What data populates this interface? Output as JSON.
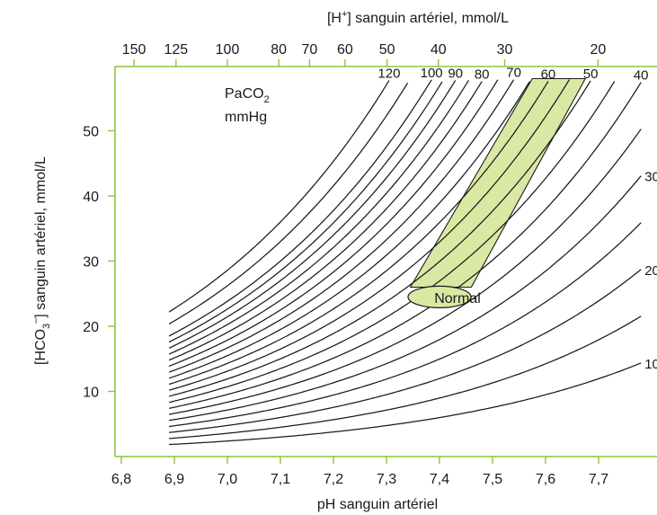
{
  "chart_data": {
    "type": "line",
    "xlabel": "pH sanguin artériel",
    "ylabel_parts": [
      "[HCO",
      "3",
      "–",
      "] sanguin artériel, mmol/L"
    ],
    "top_xlabel_parts": [
      "[H",
      "+",
      "] sanguin artériel, mmol/L"
    ],
    "xlim": [
      6.8,
      7.8
    ],
    "ylim": [
      0,
      58
    ],
    "x_ticks": [
      "6,8",
      "6,9",
      "7,0",
      "7,1",
      "7,2",
      "7,3",
      "7,4",
      "7,5",
      "7,6",
      "7,7"
    ],
    "x_tick_values": [
      6.8,
      6.9,
      7.0,
      7.1,
      7.2,
      7.3,
      7.4,
      7.5,
      7.6,
      7.7
    ],
    "y_ticks": [
      "10",
      "20",
      "30",
      "40",
      "50"
    ],
    "y_tick_values": [
      10,
      20,
      30,
      40,
      50
    ],
    "top_ticks": [
      "150",
      "125",
      "100",
      "80",
      "70",
      "60",
      "50",
      "40",
      "30",
      "20"
    ],
    "top_tick_values": [
      150,
      125,
      100,
      80,
      70,
      60,
      50,
      40,
      30,
      20
    ],
    "pco2_label_parts": [
      "PaCO",
      "2",
      "mmHg"
    ],
    "isobar_x_start": 6.89,
    "isobars": [
      {
        "name": "10",
        "pco2": 10
      },
      {
        "name": "20",
        "pco2": 20
      },
      {
        "name": "30",
        "pco2": 30
      },
      {
        "name": "40",
        "pco2": 40
      },
      {
        "name": "50",
        "pco2": 50
      },
      {
        "name": "60",
        "pco2": 60
      },
      {
        "name": "70",
        "pco2": 70
      },
      {
        "name": "80",
        "pco2": 80
      },
      {
        "name": "90",
        "pco2": 90
      },
      {
        "name": "100",
        "pco2": 100
      },
      {
        "name": "120",
        "pco2": 120
      },
      {
        "pco2": 15
      },
      {
        "pco2": 25
      },
      {
        "pco2": 35
      },
      {
        "pco2": 45
      },
      {
        "pco2": 55
      },
      {
        "pco2": 65
      },
      {
        "pco2": 75
      },
      {
        "pco2": 85
      },
      {
        "pco2": 95
      },
      {
        "pco2": 110
      }
    ],
    "normal_region": {
      "label": "Normal",
      "center": [
        7.4,
        24.5
      ],
      "band": [
        [
          7.345,
          26
        ],
        [
          7.46,
          26
        ],
        [
          7.675,
          58
        ],
        [
          7.575,
          58
        ]
      ]
    },
    "colors": {
      "axis": "#8dc63f",
      "band_fill": "#d9e9a3",
      "band_stroke": "#1a1a1a",
      "curve": "#1a1a1a"
    }
  }
}
